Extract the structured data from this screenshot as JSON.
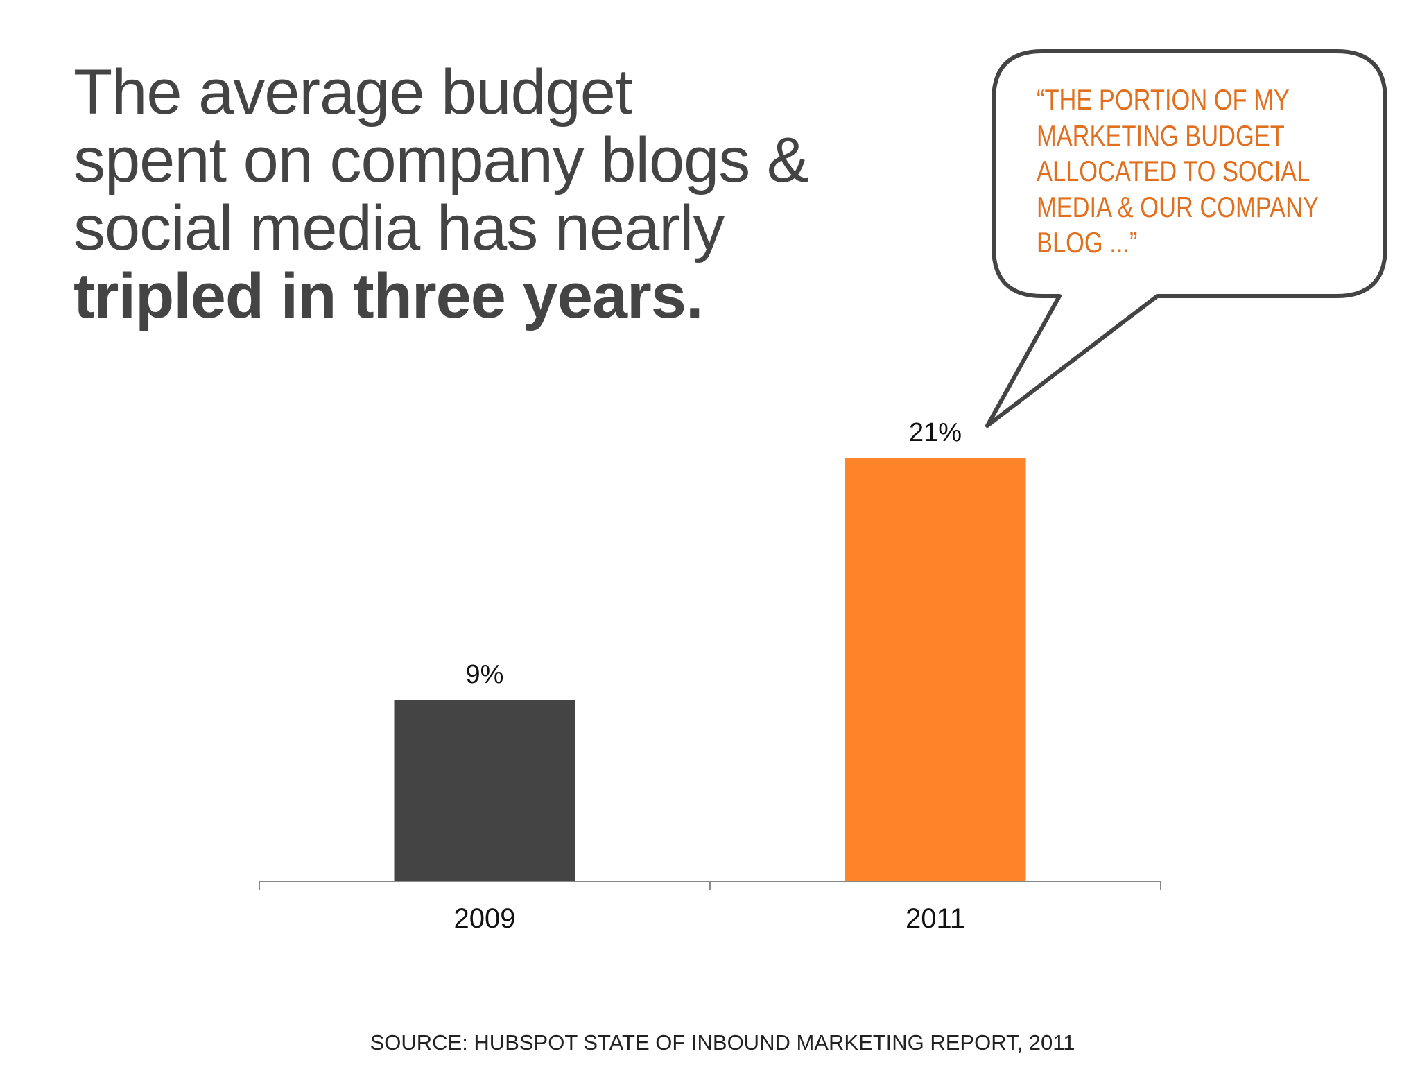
{
  "headline": {
    "lines": [
      "The average budget",
      "spent on company blogs &",
      "social media has nearly"
    ],
    "bold_line": "tripled in three years."
  },
  "callout": {
    "lines": [
      "“THE PORTION OF MY",
      "MARKETING BUDGET",
      "ALLOCATED TO SOCIAL",
      "MEDIA & OUR COMPANY",
      "BLOG ...”"
    ],
    "text_color": "#E0701F",
    "border_color": "#444444"
  },
  "chart_data": {
    "type": "bar",
    "categories": [
      "2009",
      "2011"
    ],
    "values": [
      9,
      21
    ],
    "data_labels": [
      "9%",
      "21%"
    ],
    "bar_colors": [
      "#444444",
      "#FF8329"
    ],
    "ylim": [
      0,
      21
    ],
    "grid": false,
    "legend": "none"
  },
  "source": "SOURCE: HUBSPOT STATE OF INBOUND MARKETING REPORT, 2011"
}
